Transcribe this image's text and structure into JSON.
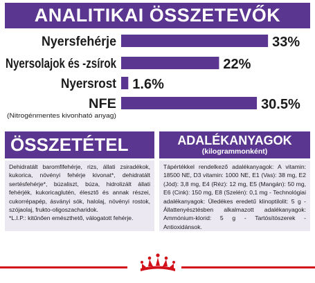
{
  "header": {
    "title": "ANALITIKAI ÖSSZETEVŐK"
  },
  "chart_data": {
    "type": "bar",
    "orientation": "horizontal",
    "categories": [
      "Nyersfehérje",
      "Nyersolajok és -zsírok",
      "Nyersrost",
      "NFE"
    ],
    "category_sublabels": [
      "",
      "",
      "",
      "(Nitrogénmentes kivonható anyag)"
    ],
    "values": [
      33,
      22,
      1.6,
      30.5
    ],
    "value_labels": [
      "33%",
      "22%",
      "1.6%",
      "30.5%"
    ],
    "bar_color": "#5b3691",
    "xlim": [
      0,
      35
    ]
  },
  "composition": {
    "heading": "ÖSSZETÉTEL",
    "text": "Dehidratált baromfifehérje, rizs, állati zsiradékok, kukorica, növényi fehérje kivonat*, dehidratált sertésfehérje*, búzaliszt, búza, hidrolizált állati fehérjék, kukoricaglutén, élesztő és annak részei, cukorrépapép, ásványi sók, halolaj, növényi rostok, szójaolaj, frukto-oligoszacharidok.",
    "note": "*L.I.P.: kitűnően emészthető, válogatott fehérje."
  },
  "additives": {
    "heading": "ADALÉKANYAGOK",
    "subheading": "(kilogrammonként)",
    "text": "Tápértékkel rendelkező adalékanyagok: A vitamin: 18500 NE, D3 vitamin: 1000 NE, E1 (Vas): 38 mg, E2 (Jód): 3,8 mg, E4 (Réz): 12 mg, E5 (Mangán): 50 mg, E6 (Cink): 150 mg, E8 (Szelén): 0,1 mg - Technológiai adalékanyagok: Üledékes eredetű klinoptilolit: 5 g - Állattenyésztésben alkalmazott adalékanyagok: Ammónium-klorid: 5 g - Tartósítószerek - Antioxidánsok."
  },
  "colors": {
    "accent": "#5b3691",
    "panel": "#ece8f2",
    "footer": "#d2101a"
  },
  "logo": {
    "icon": "royal-canin-crown-icon"
  }
}
